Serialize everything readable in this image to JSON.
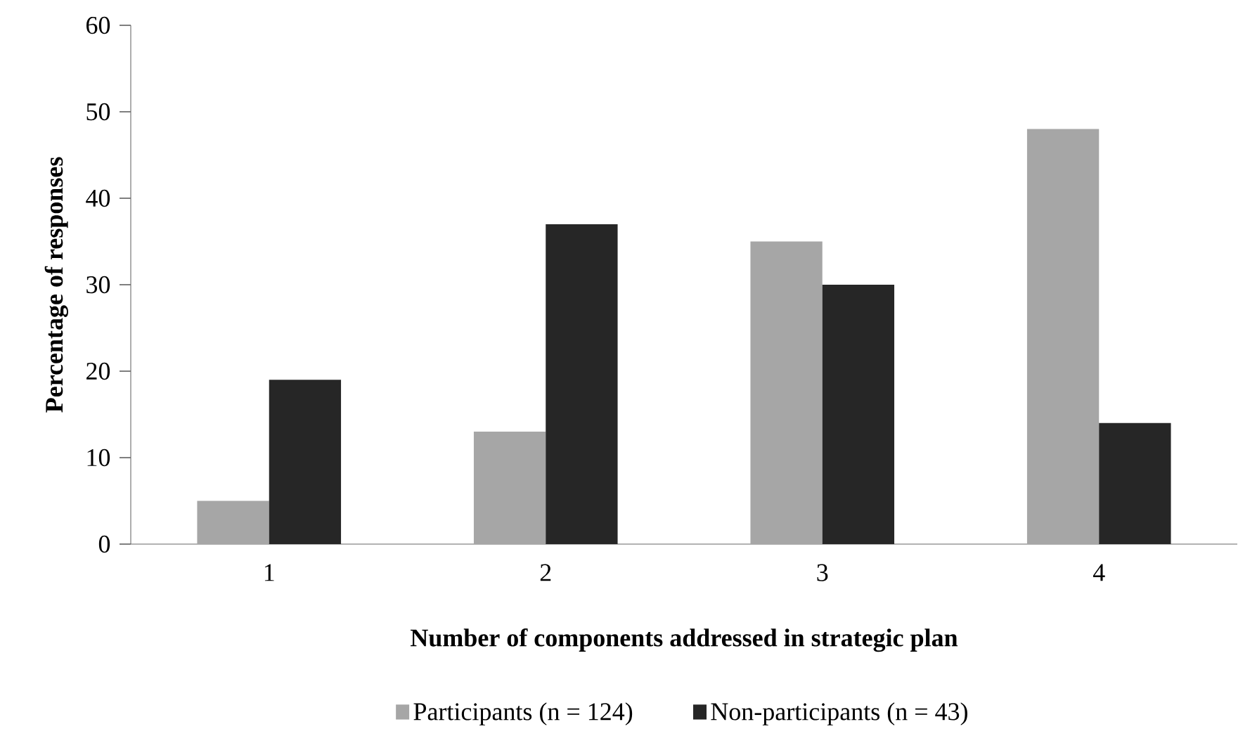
{
  "chart_data": {
    "type": "bar",
    "xlabel": "Number of components addressed in strategic plan",
    "ylabel": "Percentage of responses",
    "categories": [
      "1",
      "2",
      "3",
      "4"
    ],
    "series": [
      {
        "name": "Participants (n = 124)",
        "color": "#a6a6a6",
        "values": [
          5,
          13,
          35,
          48
        ]
      },
      {
        "name": "Non-participants (n = 43)",
        "color": "#262626",
        "values": [
          19,
          37,
          30,
          14
        ]
      }
    ],
    "ylim": [
      0,
      60
    ],
    "yticks": [
      0,
      10,
      20,
      30,
      40,
      50,
      60
    ],
    "grid": false,
    "legend": "bottom"
  }
}
